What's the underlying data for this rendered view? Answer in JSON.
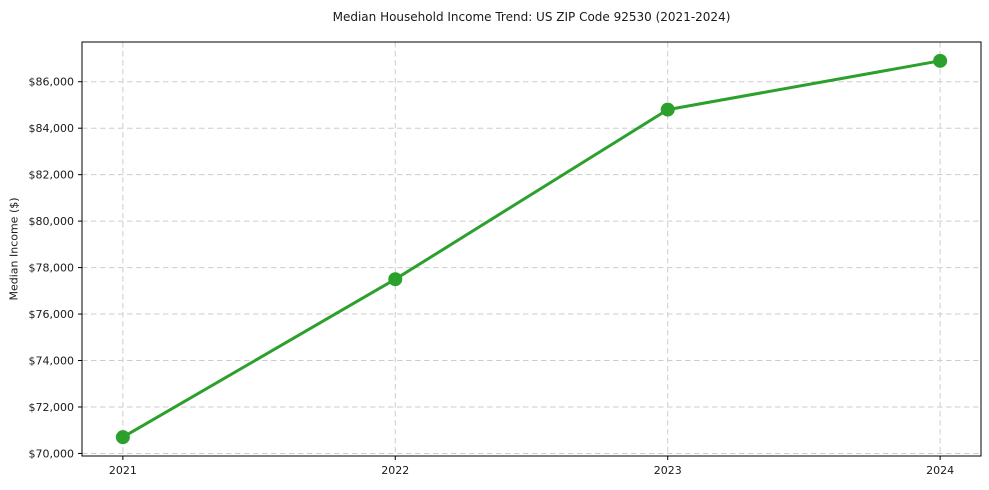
{
  "chart_data": {
    "type": "line",
    "title": "Median Household Income Trend: US ZIP Code 92530 (2021-2024)",
    "xlabel": "",
    "ylabel": "Median Income ($)",
    "x": [
      2021,
      2022,
      2023,
      2024
    ],
    "x_tick_labels": [
      "2021",
      "2022",
      "2023",
      "2024"
    ],
    "series": [
      {
        "name": "Median Household Income",
        "values": [
          70700,
          77500,
          84800,
          86900
        ]
      }
    ],
    "y_ticks": [
      {
        "value": 70000,
        "label": "$70,000"
      },
      {
        "value": 72000,
        "label": "$72,000"
      },
      {
        "value": 74000,
        "label": "$74,000"
      },
      {
        "value": 76000,
        "label": "$76,000"
      },
      {
        "value": 78000,
        "label": "$78,000"
      },
      {
        "value": 80000,
        "label": "$80,000"
      },
      {
        "value": 82000,
        "label": "$82,000"
      },
      {
        "value": 84000,
        "label": "$84,000"
      },
      {
        "value": 86000,
        "label": "$86,000"
      }
    ],
    "xlim": [
      2020.85,
      2024.15
    ],
    "ylim": [
      69890,
      87710
    ],
    "grid": true,
    "grid_style": "dashed",
    "legend_position": "none",
    "colors": {
      "line": "#2ca02c",
      "marker": "#2ca02c",
      "grid": "#cdcdcd",
      "axis": "#000000",
      "text": "#1a1a1a",
      "background": "#ffffff"
    }
  }
}
